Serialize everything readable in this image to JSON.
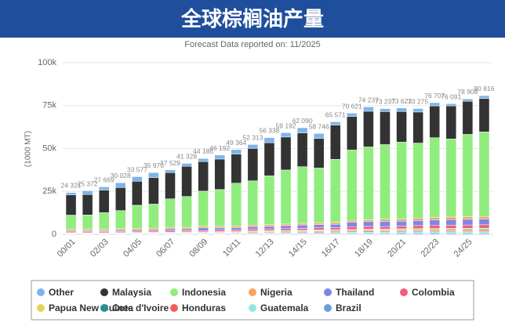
{
  "chart_data": {
    "type": "stacked_bar",
    "title": "全球棕榈油产量",
    "subtitle": "Forecast Data reported on: 11/2025",
    "y_label": "(1000 MT)",
    "categories": [
      "00/01",
      null,
      "02/03",
      null,
      "04/05",
      null,
      "06/07",
      null,
      "08/09",
      null,
      "10/11",
      null,
      "12/13",
      null,
      "14/15",
      null,
      "16/17",
      null,
      "18/19",
      null,
      "20/21",
      null,
      "22/23",
      null,
      "24/25",
      null
    ],
    "ylim": [
      0,
      100000
    ],
    "yticks": [
      0,
      {
        "value": 25000,
        "label": "25k"
      },
      {
        "value": 50000,
        "label": "50k"
      },
      {
        "value": 75000,
        "label": "75k"
      },
      {
        "value": 100000,
        "label": "100k"
      }
    ],
    "grid": true,
    "series": [
      {
        "name": "Other",
        "color": "#7cb5ec",
        "values": [
          1341,
          2192,
          1889,
          2768,
          2662,
          2890,
          1574,
          1703,
          1776,
          2332,
          2564,
          2233,
          2953,
          2492,
          3020,
          2816,
          1966,
          1996,
          2517,
          1697,
          2063,
          1995,
          1847,
          1221,
          1378,
          1666
        ]
      },
      {
        "name": "Malaysia",
        "color": "#333333",
        "values": [
          11800,
          11900,
          13180,
          13420,
          13980,
          15485,
          15290,
          17570,
          17260,
          17760,
          16990,
          18910,
          19320,
          19220,
          19670,
          17320,
          19920,
          19510,
          20800,
          19260,
          17850,
          18120,
          18560,
          19300,
          19300,
          19500
        ]
      },
      {
        "name": "Indonesia",
        "color": "#90ed7d",
        "values": [
          8300,
          8300,
          9620,
          10600,
          13600,
          14100,
          16600,
          18000,
          20500,
          21500,
          25000,
          25800,
          28500,
          31500,
          33000,
          32000,
          36800,
          41000,
          42500,
          43500,
          44800,
          43700,
          46500,
          45500,
          48000,
          49200
        ]
      },
      {
        "name": "Nigeria",
        "color": "#f7a35c",
        "values": [
          900,
          900,
          900,
          900,
          900,
          900,
          900,
          900,
          900,
          900,
          930,
          940,
          930,
          910,
          930,
          990,
          1025,
          1015,
          1020,
          1220,
          1280,
          1400,
          1400,
          1500,
          1500,
          1500
        ]
      },
      {
        "name": "Thailand",
        "color": "#8085e9",
        "values": [
          580,
          620,
          600,
          670,
          690,
          780,
          1170,
          1050,
          1540,
          1310,
          1380,
          1530,
          1500,
          1800,
          2000,
          1800,
          2000,
          2630,
          2780,
          3040,
          2830,
          2970,
          3260,
          3250,
          3300,
          3400
        ]
      },
      {
        "name": "Colombia",
        "color": "#f15c80",
        "values": [
          520,
          550,
          530,
          630,
          630,
          660,
          710,
          730,
          780,
          800,
          750,
          940,
          975,
          1040,
          1110,
          1270,
          1150,
          1620,
          1630,
          1530,
          1560,
          1760,
          1740,
          1860,
          1900,
          1950
        ]
      },
      {
        "name": "Papua New Guinea",
        "color": "#e4d354",
        "values": [
          330,
          330,
          330,
          330,
          345,
          310,
          365,
          385,
          400,
          470,
          500,
          530,
          560,
          500,
          520,
          540,
          580,
          630,
          630,
          650,
          700,
          770,
          800,
          830,
          850,
          860
        ]
      },
      {
        "name": "Cote d'Ivoire",
        "color": "#2b908f",
        "values": [
          250,
          250,
          240,
          250,
          260,
          280,
          300,
          310,
          290,
          320,
          300,
          400,
          400,
          420,
          420,
          430,
          430,
          430,
          440,
          450,
          480,
          510,
          500,
          530,
          540,
          560
        ]
      },
      {
        "name": "Honduras",
        "color": "#f45b5b",
        "values": [
          130,
          140,
          170,
          210,
          230,
          250,
          260,
          280,
          300,
          320,
          380,
          400,
          430,
          470,
          510,
          560,
          580,
          580,
          580,
          520,
          590,
          590,
          610,
          620,
          620,
          630
        ]
      },
      {
        "name": "Guatemala",
        "color": "#91e8e1",
        "values": [
          70,
          80,
          90,
          110,
          130,
          150,
          170,
          190,
          210,
          230,
          300,
          330,
          450,
          500,
          550,
          650,
          740,
          750,
          850,
          850,
          900,
          890,
          900,
          880,
          900,
          910
        ]
      },
      {
        "name": "Brazil",
        "color": "#6a9fd8",
        "values": [
          100,
          110,
          120,
          140,
          150,
          170,
          190,
          210,
          230,
          250,
          270,
          300,
          320,
          340,
          360,
          370,
          380,
          460,
          490,
          520,
          570,
          570,
          590,
          600,
          620,
          640
        ]
      }
    ],
    "totals": {
      "values": [
        24321,
        25372,
        27669,
        30028,
        33577,
        35975,
        37529,
        41328,
        44186,
        46192,
        49364,
        52313,
        56338,
        59192,
        62090,
        58746,
        65571,
        70621,
        74237,
        73237,
        73623,
        73275,
        76707,
        76091,
        78908,
        80816
      ],
      "value_labels": [
        "24 321",
        "25 372",
        "27 669",
        "30 028",
        "33 577",
        "35 975",
        "37 529",
        "41 328",
        "44 186",
        "46 192",
        "49 364",
        "52 313",
        "56 338",
        "59 192",
        "62 090",
        "58 746",
        "65 571",
        "70 621",
        "74 237",
        "73 237",
        "73 623",
        "73 275",
        "76 707",
        "76 091",
        "78 908",
        "80 816"
      ]
    }
  }
}
